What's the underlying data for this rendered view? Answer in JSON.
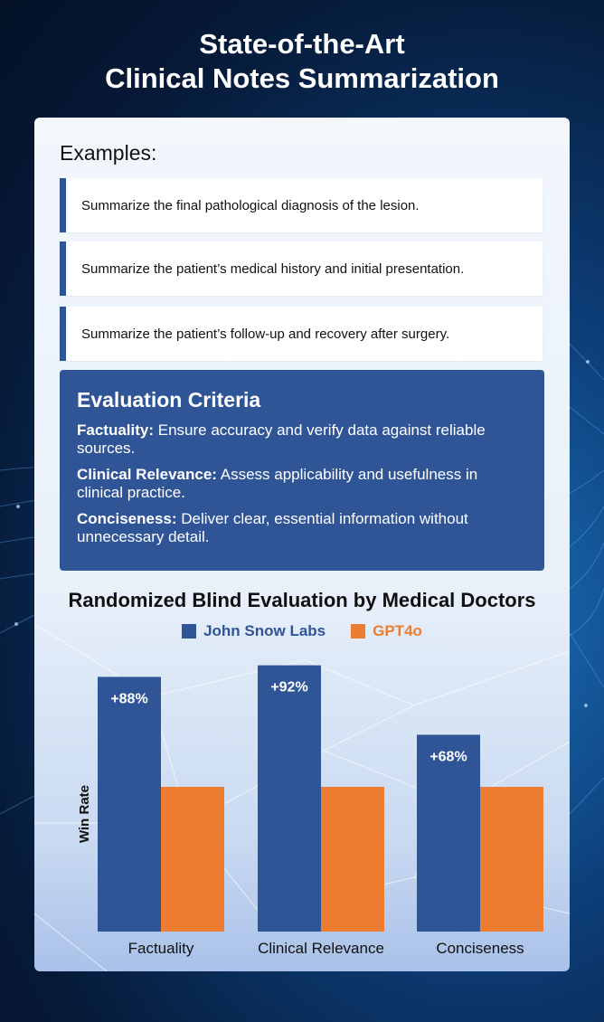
{
  "header": {
    "title_line1": "State-of-the-Art",
    "title_line2": "Clinical Notes Summarization"
  },
  "examples": {
    "heading": "Examples:",
    "items": [
      "Summarize the final pathological diagnosis of the lesion.",
      "Summarize the patient’s medical history and initial presentation.",
      "Summarize the patient’s follow-up and recovery after surgery."
    ]
  },
  "criteria": {
    "title": "Evaluation Criteria",
    "items": [
      {
        "name": "Factuality:",
        "text": " Ensure accuracy and verify data against reliable sources."
      },
      {
        "name": "Clinical Relevance:",
        "text": " Assess applicability and usefulness in clinical practice."
      },
      {
        "name": "Conciseness:",
        "text": " Deliver clear, essential information without unnecessary detail."
      }
    ]
  },
  "colors": {
    "john_snow_labs": "#2f5597",
    "gpt4o": "#ed7d31"
  },
  "chart_data": {
    "type": "bar",
    "title": "Randomized Blind Evaluation by Medical Doctors",
    "ylabel": "Win Rate",
    "xlabel": "",
    "categories": [
      "Factuality",
      "Clinical Relevance",
      "Conciseness"
    ],
    "series": [
      {
        "name": "John Snow Labs",
        "values": [
          88,
          92,
          68
        ],
        "labels": [
          "+88%",
          "+92%",
          "+68%"
        ]
      },
      {
        "name": "GPT4o",
        "values": [
          50,
          50,
          50
        ]
      }
    ],
    "ylim": [
      0,
      100
    ],
    "legend": "top-center",
    "grid": false
  }
}
